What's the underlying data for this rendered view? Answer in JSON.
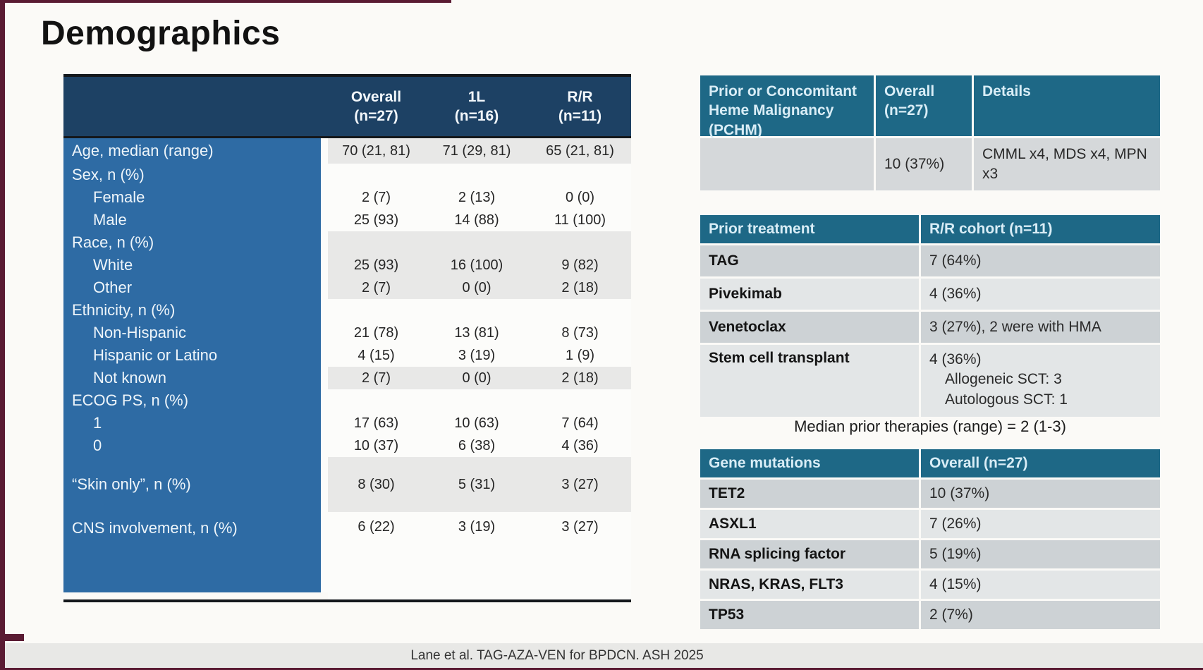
{
  "page": {
    "title": "Demographics",
    "footer": "Lane et al. TAG-AZA-VEN for BPDCN. ASH 2025",
    "median_note": "Median prior therapies (range) = 2 (1-3)"
  },
  "colors": {
    "navy_header": "#1d4164",
    "blue_label_column": "#2e6ba4",
    "teal_header": "#1e6886",
    "stripe_gray": "#e8e8e7",
    "row_dark_gray": "#cdd2d5",
    "row_light_gray": "#e3e6e7",
    "maroon_edge": "#5a1b33"
  },
  "demographics": {
    "columns": [
      "",
      "Overall\n(n=27)",
      "1L\n(n=16)",
      "R/R\n(n=11)"
    ],
    "rows": [
      {
        "label": "Age, median (range)",
        "indent": 0,
        "shade": "gray",
        "values": [
          "70 (21, 81)",
          "71 (29, 81)",
          "65 (21, 81)"
        ]
      },
      {
        "label": "Sex, n (%)",
        "indent": 0,
        "shade": "white",
        "values": [
          "",
          "",
          ""
        ]
      },
      {
        "label": "Female",
        "indent": 1,
        "shade": "white",
        "values": [
          "2 (7)",
          "2 (13)",
          "0 (0)"
        ]
      },
      {
        "label": "Male",
        "indent": 1,
        "shade": "white",
        "values": [
          "25 (93)",
          "14 (88)",
          "11 (100)"
        ]
      },
      {
        "label": "Race, n (%)",
        "indent": 0,
        "shade": "gray",
        "values": [
          "",
          "",
          ""
        ]
      },
      {
        "label": "White",
        "indent": 1,
        "shade": "gray",
        "values": [
          "25 (93)",
          "16 (100)",
          "9 (82)"
        ]
      },
      {
        "label": "Other",
        "indent": 1,
        "shade": "gray",
        "values": [
          "2 (7)",
          "0 (0)",
          "2 (18)"
        ]
      },
      {
        "label": "Ethnicity, n (%)",
        "indent": 0,
        "shade": "white",
        "values": [
          "",
          "",
          ""
        ]
      },
      {
        "label": "Non-Hispanic",
        "indent": 1,
        "shade": "white",
        "values": [
          "21 (78)",
          "13 (81)",
          "8 (73)"
        ]
      },
      {
        "label": "Hispanic or Latino",
        "indent": 1,
        "shade": "white",
        "values": [
          "4 (15)",
          "3 (19)",
          "1 (9)"
        ]
      },
      {
        "label": "Not known",
        "indent": 1,
        "shade": "gray",
        "values": [
          "2 (7)",
          "0 (0)",
          "2 (18)"
        ]
      },
      {
        "label": "ECOG PS, n (%)",
        "indent": 0,
        "shade": "white",
        "values": [
          "",
          "",
          ""
        ]
      },
      {
        "label": "1",
        "indent": 1,
        "shade": "white",
        "values": [
          "17 (63)",
          "10 (63)",
          "7 (64)"
        ]
      },
      {
        "label": "0",
        "indent": 1,
        "shade": "white",
        "values": [
          "10 (37)",
          "6 (38)",
          "4 (36)"
        ]
      },
      {
        "label": "“Skin only”, n (%)",
        "indent": 0,
        "shade": "gray",
        "values": [
          "8 (30)",
          "5 (31)",
          "3 (27)"
        ]
      },
      {
        "label": "CNS involvement, n (%)",
        "indent": 0,
        "shade": "white",
        "values": [
          "6 (22)",
          "3 (19)",
          "3 (27)"
        ]
      }
    ]
  },
  "pchm": {
    "headers": [
      "Prior or Concomitant Heme Malignancy (PCHM)",
      "Overall\n(n=27)",
      "Details"
    ],
    "row": {
      "overall": "10 (37%)",
      "details": "CMML x4, MDS x4, MPN x3"
    }
  },
  "prior_treatment": {
    "headers": [
      "Prior treatment",
      "R/R cohort (n=11)"
    ],
    "rows": [
      {
        "label": "TAG",
        "value": "7 (64%)"
      },
      {
        "label": "Pivekimab",
        "value": "4 (36%)"
      },
      {
        "label": "Venetoclax",
        "value": "3 (27%), 2 were with HMA"
      },
      {
        "label": "Stem cell transplant",
        "value": "4 (36%)",
        "sublines": [
          "Allogeneic SCT: 3",
          "Autologous SCT: 1"
        ]
      }
    ]
  },
  "gene_mutations": {
    "headers": [
      "Gene mutations",
      "Overall (n=27)"
    ],
    "rows": [
      {
        "label": "TET2",
        "value": "10 (37%)"
      },
      {
        "label": "ASXL1",
        "value": "7 (26%)"
      },
      {
        "label": "RNA splicing factor",
        "value": "5 (19%)"
      },
      {
        "label": "NRAS, KRAS, FLT3",
        "value": "4 (15%)"
      },
      {
        "label": "TP53",
        "value": "2 (7%)"
      }
    ]
  }
}
